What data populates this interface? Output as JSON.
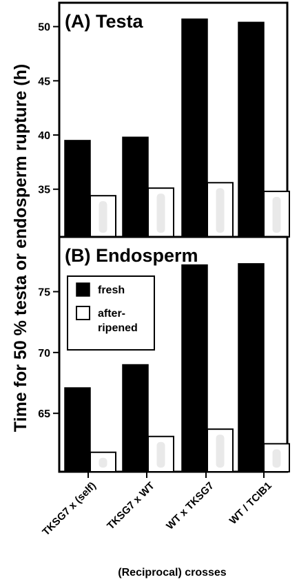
{
  "chart_data": [
    {
      "type": "bar",
      "title": "(A) Testa",
      "categories": [
        "TKSG7 x (self)",
        "TKSG7 x WT",
        "WT x TKSG7",
        "WT / TCIB1"
      ],
      "series": [
        {
          "name": "fresh",
          "values": [
            39.5,
            39.8,
            50.7,
            50.4
          ],
          "color": "#000000"
        },
        {
          "name": "after-ripened",
          "values": [
            34.4,
            35.1,
            35.6,
            34.8
          ],
          "color": "#ffffff"
        }
      ],
      "ylim": [
        30.6,
        52.2
      ],
      "yticks": [
        "35",
        "40",
        "45",
        "50"
      ],
      "ytick_values": [
        35,
        40,
        45,
        50
      ]
    },
    {
      "type": "bar",
      "title": "(B) Endosperm",
      "categories": [
        "TKSG7 x (self)",
        "TKSG7 x WT",
        "WT x TKSG7",
        "WT / TCIB1"
      ],
      "series": [
        {
          "name": "fresh",
          "values": [
            67.1,
            69.0,
            77.2,
            77.3
          ],
          "color": "#000000"
        },
        {
          "name": "after-ripened",
          "values": [
            61.8,
            63.1,
            63.7,
            62.5
          ],
          "color": "#ffffff"
        }
      ],
      "ylim": [
        60.2,
        79.5
      ],
      "yticks": [
        "65",
        "70",
        "75"
      ],
      "ytick_values": [
        65,
        70,
        75
      ],
      "legend": {
        "position": "top-left",
        "entries": [
          "fresh",
          "after-ripened"
        ]
      }
    }
  ],
  "ylabel": "Time for 50 % testa or endosperm rupture (h)",
  "xlabel": "(Reciprocal) crosses",
  "legend_labels": {
    "fresh": "fresh",
    "after_line1": "after-",
    "after_line2": "ripened"
  }
}
